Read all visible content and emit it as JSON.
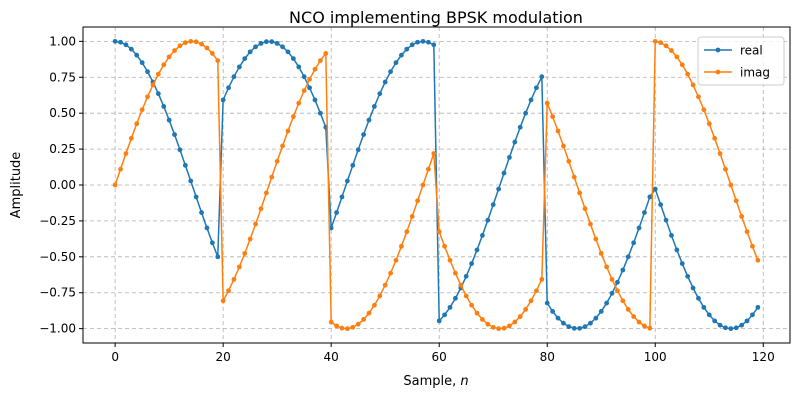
{
  "chart_data": {
    "type": "line",
    "title": "NCO implementing BPSK modulation",
    "xlabel": "Sample, ",
    "xlabel_italic": "n",
    "ylabel": "Amplitude",
    "xlim": [
      -5.95,
      124.95
    ],
    "ylim": [
      -1.1,
      1.1
    ],
    "xticks": [
      0,
      20,
      40,
      60,
      80,
      100,
      120
    ],
    "xtick_labels": [
      "0",
      "20",
      "40",
      "60",
      "80",
      "100",
      "120"
    ],
    "yticks": [
      -1.0,
      -0.75,
      -0.5,
      -0.25,
      0.0,
      0.25,
      0.5,
      0.75,
      1.0
    ],
    "ytick_labels": [
      "−1.00",
      "−0.75",
      "−0.50",
      "−0.25",
      "0.00",
      "0.25",
      "0.50",
      "0.75",
      "1.00"
    ],
    "grid": true,
    "grid_style": "dashed",
    "legend_placement": "top-right",
    "x_start": 0,
    "x_step": 1,
    "series": [
      {
        "name": "real",
        "color": "#1f77b4",
        "marker": "circle",
        "values": [
          1,
          0.994,
          0.976,
          0.946,
          0.904,
          0.852,
          0.789,
          0.717,
          0.636,
          0.547,
          0.452,
          0.351,
          0.245,
          0.137,
          0.028,
          -0.083,
          -0.192,
          -0.299,
          -0.402,
          -0.5,
          0.592,
          0.677,
          0.754,
          0.822,
          0.88,
          0.927,
          0.962,
          0.986,
          0.998,
          0.998,
          0.986,
          0.962,
          0.927,
          0.88,
          0.822,
          0.754,
          0.677,
          0.592,
          0.5,
          0.402,
          -0.299,
          -0.192,
          -0.083,
          0.028,
          0.137,
          0.245,
          0.351,
          0.452,
          0.547,
          0.636,
          0.717,
          0.789,
          0.852,
          0.904,
          0.946,
          0.976,
          0.994,
          1,
          0.994,
          0.976,
          -0.946,
          -0.904,
          -0.852,
          -0.789,
          -0.717,
          -0.636,
          -0.547,
          -0.452,
          -0.351,
          -0.245,
          -0.137,
          -0.028,
          0.083,
          0.192,
          0.299,
          0.402,
          0.5,
          0.592,
          0.677,
          0.754,
          -0.822,
          -0.88,
          -0.927,
          -0.962,
          -0.986,
          -0.998,
          -0.998,
          -0.986,
          -0.962,
          -0.927,
          -0.88,
          -0.822,
          -0.754,
          -0.677,
          -0.592,
          -0.5,
          -0.402,
          -0.299,
          -0.192,
          -0.083,
          -0.028,
          -0.137,
          -0.245,
          -0.351,
          -0.452,
          -0.547,
          -0.636,
          -0.717,
          -0.789,
          -0.852,
          -0.904,
          -0.946,
          -0.976,
          -0.994,
          -1,
          -0.994,
          -0.976,
          -0.946,
          -0.904,
          -0.852
        ]
      },
      {
        "name": "imag",
        "color": "#ff7f0e",
        "marker": "circle",
        "values": [
          0,
          0.11,
          0.219,
          0.325,
          0.427,
          0.524,
          0.614,
          0.697,
          0.772,
          0.837,
          0.892,
          0.936,
          0.969,
          0.991,
          1,
          0.997,
          0.981,
          0.954,
          0.916,
          0.866,
          -0.806,
          -0.736,
          -0.657,
          -0.57,
          -0.476,
          -0.376,
          -0.272,
          -0.165,
          -0.055,
          0.055,
          0.165,
          0.272,
          0.376,
          0.476,
          0.57,
          0.657,
          0.736,
          0.806,
          0.866,
          0.916,
          -0.954,
          -0.981,
          -0.997,
          -1,
          -0.991,
          -0.969,
          -0.936,
          -0.892,
          -0.837,
          -0.772,
          -0.697,
          -0.614,
          -0.524,
          -0.427,
          -0.325,
          -0.219,
          -0.11,
          0,
          0.11,
          0.219,
          -0.325,
          -0.427,
          -0.524,
          -0.614,
          -0.697,
          -0.772,
          -0.837,
          -0.892,
          -0.936,
          -0.969,
          -0.991,
          -1,
          -0.997,
          -0.981,
          -0.954,
          -0.916,
          -0.866,
          -0.806,
          -0.736,
          -0.657,
          0.57,
          0.476,
          0.376,
          0.272,
          0.165,
          0.055,
          -0.055,
          -0.165,
          -0.272,
          -0.376,
          -0.476,
          -0.57,
          -0.657,
          -0.736,
          -0.806,
          -0.866,
          -0.916,
          -0.954,
          -0.981,
          -0.997,
          1,
          0.991,
          0.969,
          0.936,
          0.892,
          0.837,
          0.772,
          0.697,
          0.614,
          0.524,
          0.427,
          0.325,
          0.219,
          0.11,
          0,
          -0.11,
          -0.219,
          -0.325,
          -0.427,
          -0.524
        ]
      }
    ]
  }
}
